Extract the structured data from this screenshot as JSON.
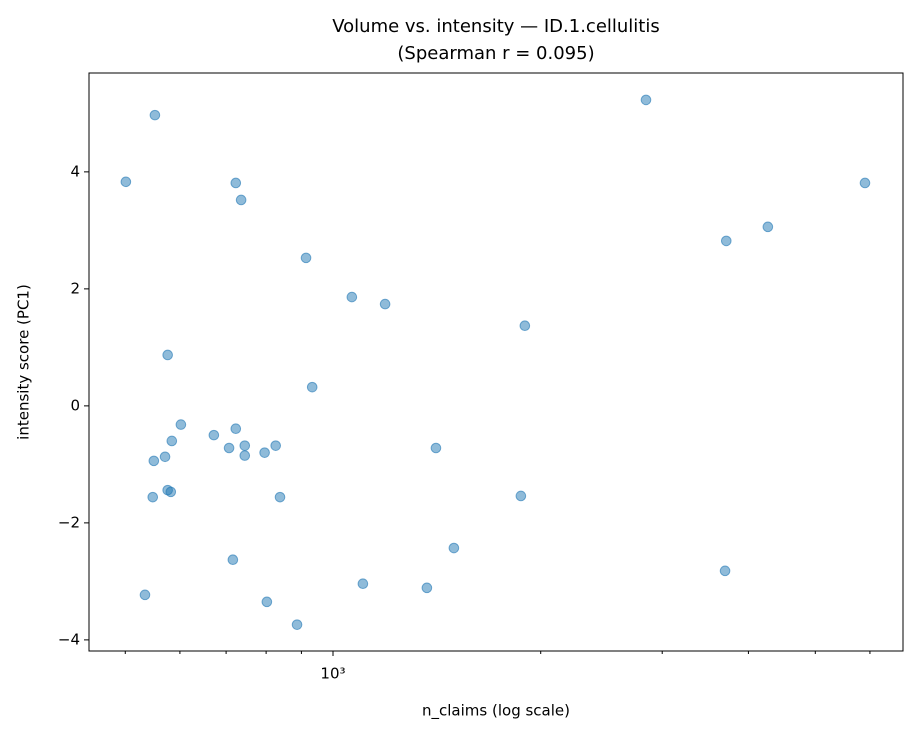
{
  "chart_data": {
    "type": "scatter",
    "title": "Volume vs. intensity — ID.1.cellulitis",
    "subtitle": "(Spearman r = 0.095)",
    "xlabel": "n_claims (log scale)",
    "ylabel": "intensity score (PC1)",
    "xscale": "log",
    "color": "#1f77b4",
    "x": [
      501,
      552,
      534,
      548,
      550,
      571,
      576,
      576,
      582,
      584,
      602,
      672,
      707,
      716,
      723,
      723,
      736,
      745,
      745,
      796,
      802,
      826,
      838,
      887,
      914,
      933,
      1065,
      1105,
      1190,
      1368,
      1410,
      1497,
      1872,
      1897,
      2842,
      3715,
      3700,
      4268,
      5902
    ],
    "values": [
      3.83,
      4.97,
      -3.23,
      -1.56,
      -0.94,
      -0.87,
      0.87,
      -1.44,
      -1.47,
      -0.6,
      -0.32,
      -0.5,
      -0.72,
      -2.63,
      3.81,
      -0.39,
      3.52,
      -0.68,
      -0.85,
      -0.8,
      -3.35,
      -0.68,
      -1.56,
      -3.74,
      2.53,
      0.32,
      1.86,
      -3.04,
      1.74,
      -3.11,
      -0.72,
      -2.43,
      -1.54,
      1.37,
      5.23,
      2.82,
      -2.82,
      3.06,
      3.81
    ],
    "xlim": [
      443,
      6700
    ],
    "ylim": [
      -4.19,
      5.69
    ],
    "xticks": [
      {
        "value": 1000,
        "label": "10³"
      }
    ],
    "xminorticks": [
      500,
      600,
      700,
      800,
      900,
      2000,
      3000,
      4000,
      5000,
      6000
    ],
    "yticks": [
      {
        "value": -4,
        "label": "−4"
      },
      {
        "value": -2,
        "label": "−2"
      },
      0,
      2,
      4
    ],
    "grid": false
  }
}
